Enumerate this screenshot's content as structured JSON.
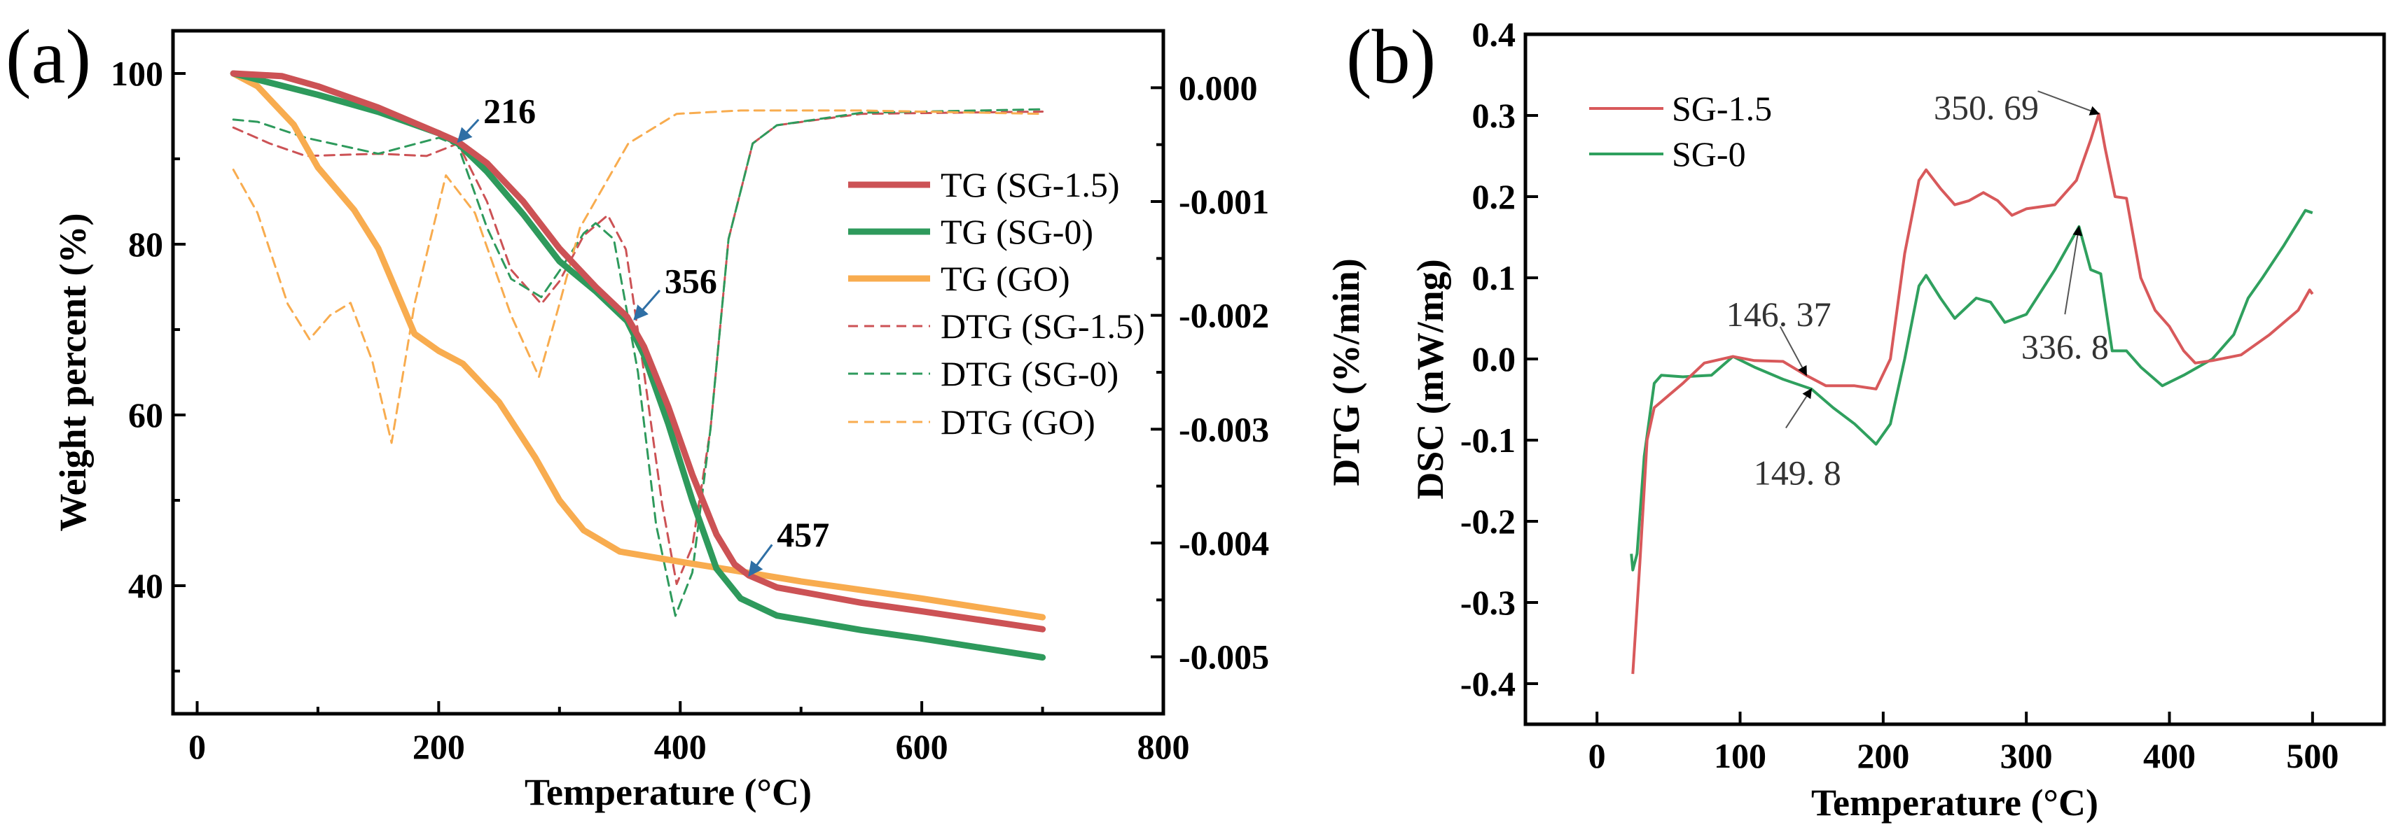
{
  "chart_data": [
    {
      "id": "a",
      "panel_label": "(a)",
      "type": "line",
      "xlabel": "Temperature (°C)",
      "ylabel": "Weight percent (%)",
      "y2label": "DTG (%/min)",
      "xlim": [
        -20,
        800
      ],
      "ylim": [
        25,
        105
      ],
      "y2lim": [
        -0.0055,
        0.0005
      ],
      "xticks": [
        0,
        200,
        400,
        600,
        800
      ],
      "yticks": [
        40,
        60,
        80,
        100
      ],
      "y2ticks": [
        0.0,
        -0.001,
        -0.002,
        -0.003,
        -0.004,
        -0.005
      ],
      "xtick_labels": [
        "0",
        "200",
        "400",
        "600",
        "800"
      ],
      "ytick_labels": [
        "40",
        "60",
        "80",
        "100"
      ],
      "y2tick_labels": [
        "0.000",
        "-0.001",
        "-0.002",
        "-0.003",
        "-0.004",
        "-0.005"
      ],
      "grid": false,
      "legend_position": "center-right",
      "series": [
        {
          "name": "TG (SG-1.5)",
          "axis": "left",
          "style": "solid",
          "color": "#cc5255",
          "x": [
            30,
            70,
            100,
            150,
            200,
            216,
            240,
            270,
            300,
            330,
            356,
            370,
            390,
            410,
            430,
            445,
            457,
            480,
            550,
            600,
            700
          ],
          "y": [
            100,
            99.7,
            98.5,
            96,
            93,
            92,
            89.5,
            85,
            79.5,
            75,
            71.5,
            68,
            61,
            53,
            46,
            42.5,
            41.2,
            39.8,
            38,
            37,
            34.9
          ]
        },
        {
          "name": "TG (SG-0)",
          "axis": "left",
          "style": "solid",
          "color": "#2e9a5c",
          "x": [
            30,
            100,
            150,
            200,
            216,
            240,
            270,
            300,
            330,
            356,
            370,
            390,
            410,
            430,
            450,
            480,
            550,
            600,
            700
          ],
          "y": [
            100,
            97.5,
            95.5,
            93,
            91.8,
            88.5,
            83.5,
            78,
            74.5,
            71,
            67,
            59,
            50,
            42,
            38.5,
            36.5,
            34.8,
            33.8,
            31.6
          ]
        },
        {
          "name": "TG (GO)",
          "axis": "left",
          "style": "solid",
          "color": "#f8ac4f",
          "x": [
            30,
            50,
            80,
            100,
            130,
            150,
            180,
            200,
            220,
            250,
            280,
            300,
            320,
            350,
            400,
            457,
            500,
            600,
            700
          ],
          "y": [
            100,
            98.5,
            94,
            89,
            84,
            79.5,
            69.5,
            67.5,
            66,
            61.5,
            55,
            50,
            46.5,
            44,
            42.8,
            41.5,
            40.5,
            38.5,
            36.3
          ]
        },
        {
          "name": "DTG (SG-1.5)",
          "axis": "right",
          "style": "dashed",
          "color": "#cc5255",
          "x": [
            30,
            60,
            90,
            150,
            190,
            216,
            240,
            260,
            285,
            300,
            320,
            340,
            355,
            370,
            385,
            397,
            410,
            425,
            440,
            460,
            480,
            550,
            700
          ],
          "y": [
            -0.00035,
            -0.00049,
            -0.0006,
            -0.00058,
            -0.0006,
            -0.00049,
            -0.001,
            -0.0016,
            -0.0019,
            -0.0017,
            -0.0013,
            -0.00112,
            -0.00142,
            -0.0025,
            -0.00366,
            -0.00436,
            -0.00403,
            -0.003,
            -0.00133,
            -0.00049,
            -0.00033,
            -0.00023,
            -0.00021
          ]
        },
        {
          "name": "DTG (SG-0)",
          "axis": "right",
          "style": "dashed",
          "color": "#2e9a5c",
          "x": [
            30,
            50,
            90,
            150,
            200,
            216,
            240,
            260,
            285,
            300,
            320,
            330,
            345,
            365,
            380,
            396,
            410,
            425,
            440,
            460,
            480,
            550,
            700
          ],
          "y": [
            -0.00028,
            -0.0003,
            -0.00044,
            -0.00058,
            -0.00044,
            -0.00051,
            -0.00123,
            -0.00168,
            -0.00184,
            -0.00161,
            -0.00128,
            -0.00119,
            -0.00133,
            -0.0025,
            -0.00384,
            -0.00464,
            -0.00426,
            -0.003,
            -0.00133,
            -0.00049,
            -0.00033,
            -0.00022,
            -0.00019
          ]
        },
        {
          "name": "DTG (GO)",
          "axis": "right",
          "style": "dashed",
          "color": "#f8ac4f",
          "x": [
            30,
            50,
            75,
            93,
            110,
            127,
            145,
            161,
            180,
            206,
            230,
            260,
            283,
            300,
            317,
            357,
            397,
            450,
            550,
            700
          ],
          "y": [
            -0.00072,
            -0.0011,
            -0.0019,
            -0.00221,
            -0.002,
            -0.00189,
            -0.0024,
            -0.00312,
            -0.0019,
            -0.00077,
            -0.0011,
            -0.002,
            -0.00254,
            -0.0019,
            -0.00123,
            -0.00049,
            -0.00023,
            -0.0002,
            -0.0002,
            -0.00023
          ]
        }
      ],
      "annotations": [
        {
          "text": "216",
          "x": 237,
          "y": 95.6,
          "arrow_to": [
            216,
            92
          ],
          "arrow_from": [
            233,
            94.6
          ]
        },
        {
          "text": "356",
          "x": 387,
          "y": 75.7,
          "arrow_to": [
            362,
            71.2
          ],
          "arrow_from": [
            383,
            74.6
          ]
        },
        {
          "text": "457",
          "x": 480,
          "y": 46,
          "arrow_to": [
            457,
            41.2
          ],
          "arrow_from": [
            476,
            44.8
          ]
        }
      ]
    },
    {
      "id": "b",
      "panel_label": "(b)",
      "type": "line",
      "xlabel": "Temperature (°C)",
      "ylabel": "DSC (mW/mg)",
      "xlim": [
        -50,
        550
      ],
      "ylim": [
        -0.45,
        0.4
      ],
      "xticks": [
        0,
        100,
        200,
        300,
        400,
        500
      ],
      "yticks": [
        -0.4,
        -0.3,
        -0.2,
        -0.1,
        0.0,
        0.1,
        0.2,
        0.3,
        0.4
      ],
      "xtick_labels": [
        "0",
        "100",
        "200",
        "300",
        "400",
        "500"
      ],
      "ytick_labels": [
        "-0.4",
        "-0.3",
        "-0.2",
        "-0.1",
        "0.0",
        "0.1",
        "0.2",
        "0.3",
        "0.4"
      ],
      "grid": false,
      "legend_position": "top-left",
      "series": [
        {
          "name": "SG-1.5",
          "color": "#d8595b",
          "x": [
            25,
            30,
            35,
            40,
            50,
            60,
            75,
            95,
            110,
            130,
            146,
            160,
            180,
            195,
            205,
            215,
            225,
            230,
            240,
            250,
            260,
            270,
            280,
            290,
            300,
            320,
            335,
            345,
            350.69,
            355,
            362,
            370,
            380,
            390,
            400,
            410,
            418,
            430,
            450,
            470,
            490,
            498,
            500
          ],
          "y": [
            -0.388,
            -0.25,
            -0.1,
            -0.06,
            -0.045,
            -0.03,
            -0.005,
            0.003,
            -0.002,
            -0.003,
            -0.02,
            -0.033,
            -0.033,
            -0.037,
            0.0,
            0.13,
            0.22,
            0.233,
            0.21,
            0.19,
            0.195,
            0.205,
            0.195,
            0.177,
            0.185,
            0.19,
            0.22,
            0.27,
            0.302,
            0.26,
            0.2,
            0.198,
            0.1,
            0.06,
            0.04,
            0.01,
            -0.005,
            -0.002,
            0.005,
            0.03,
            0.06,
            0.085,
            0.08
          ]
        },
        {
          "name": "SG-0",
          "color": "#2fa05e",
          "x": [
            24,
            25,
            28,
            33,
            40,
            45,
            60,
            80,
            95,
            110,
            130,
            149.8,
            165,
            180,
            195,
            205,
            215,
            225,
            230,
            240,
            250,
            265,
            275,
            285,
            300,
            320,
            336.8,
            345,
            352,
            360,
            370,
            380,
            395,
            410,
            430,
            445,
            455,
            465,
            480,
            495,
            500
          ],
          "y": [
            -0.24,
            -0.26,
            -0.24,
            -0.12,
            -0.03,
            -0.02,
            -0.022,
            -0.02,
            0.003,
            -0.01,
            -0.025,
            -0.037,
            -0.06,
            -0.08,
            -0.105,
            -0.08,
            0.0,
            0.09,
            0.103,
            0.075,
            0.05,
            0.075,
            0.07,
            0.045,
            0.055,
            0.11,
            0.163,
            0.11,
            0.105,
            0.01,
            0.01,
            -0.01,
            -0.033,
            -0.02,
            0.0,
            0.03,
            0.075,
            0.1,
            0.14,
            0.183,
            0.18
          ]
        }
      ],
      "annotations": [
        {
          "text": "350. 69",
          "x": 272,
          "y": 0.31,
          "arrow_from": [
            308,
            0.33
          ],
          "arrow_to": [
            350.69,
            0.302
          ]
        },
        {
          "text": "146. 37",
          "x": 127,
          "y": 0.055,
          "arrow_from": [
            128,
            0.04
          ],
          "arrow_to": [
            146.37,
            -0.02
          ]
        },
        {
          "text": "149. 8",
          "x": 140,
          "y": -0.14,
          "arrow_from": [
            132,
            -0.085
          ],
          "arrow_to": [
            149.8,
            -0.037
          ]
        },
        {
          "text": "336. 8",
          "x": 327,
          "y": 0.015,
          "arrow_from": [
            327,
            0.055
          ],
          "arrow_to": [
            336.8,
            0.163
          ]
        }
      ]
    }
  ]
}
